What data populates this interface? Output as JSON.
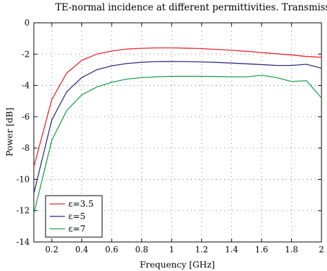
{
  "chart_data": {
    "type": "line",
    "title": "TE-normal incidence at different permittivities. Transmission.",
    "xlabel": "Frequency [GHz]",
    "ylabel": "Power [dB]",
    "xlim": [
      0.08,
      2.0
    ],
    "ylim": [
      -14,
      0
    ],
    "xticks": [
      0.2,
      0.4,
      0.6,
      0.8,
      1,
      1.2,
      1.4,
      1.6,
      1.8,
      2
    ],
    "xtick_labels": [
      "0.2",
      "0.4",
      "0.6",
      "0.8",
      "1",
      "1.2",
      "1.4",
      "1.6",
      "1.8",
      "2"
    ],
    "yticks": [
      0,
      -2,
      -4,
      -6,
      -8,
      -10,
      -12,
      -14
    ],
    "ytick_labels": [
      "0",
      "-2",
      "-4",
      "-6",
      "-8",
      "-10",
      "-12",
      "-14"
    ],
    "grid": true,
    "grid_style": "dotted",
    "legend_position": "bottom-left",
    "x": [
      0.08,
      0.2,
      0.3,
      0.4,
      0.5,
      0.6,
      0.7,
      0.8,
      0.9,
      1.0,
      1.1,
      1.2,
      1.3,
      1.4,
      1.5,
      1.6,
      1.7,
      1.8,
      1.9,
      2.0
    ],
    "series": [
      {
        "name": "ε=3.5",
        "color": "#e8232a",
        "values": [
          -9.2,
          -4.9,
          -3.2,
          -2.4,
          -2.0,
          -1.8,
          -1.68,
          -1.63,
          -1.6,
          -1.6,
          -1.62,
          -1.65,
          -1.7,
          -1.75,
          -1.82,
          -1.9,
          -1.98,
          -2.05,
          -2.15,
          -2.2
        ]
      },
      {
        "name": "ε=5",
        "color": "#2b2b7f",
        "values": [
          -10.9,
          -6.2,
          -4.4,
          -3.5,
          -3.0,
          -2.75,
          -2.6,
          -2.52,
          -2.48,
          -2.47,
          -2.48,
          -2.5,
          -2.53,
          -2.57,
          -2.62,
          -2.67,
          -2.72,
          -2.72,
          -2.65,
          -2.9
        ]
      },
      {
        "name": "ε=7",
        "color": "#1aa14a",
        "values": [
          -12.2,
          -7.5,
          -5.6,
          -4.6,
          -4.1,
          -3.8,
          -3.6,
          -3.5,
          -3.45,
          -3.42,
          -3.42,
          -3.42,
          -3.43,
          -3.45,
          -3.45,
          -3.35,
          -3.5,
          -3.75,
          -3.7,
          -4.8
        ]
      }
    ]
  }
}
